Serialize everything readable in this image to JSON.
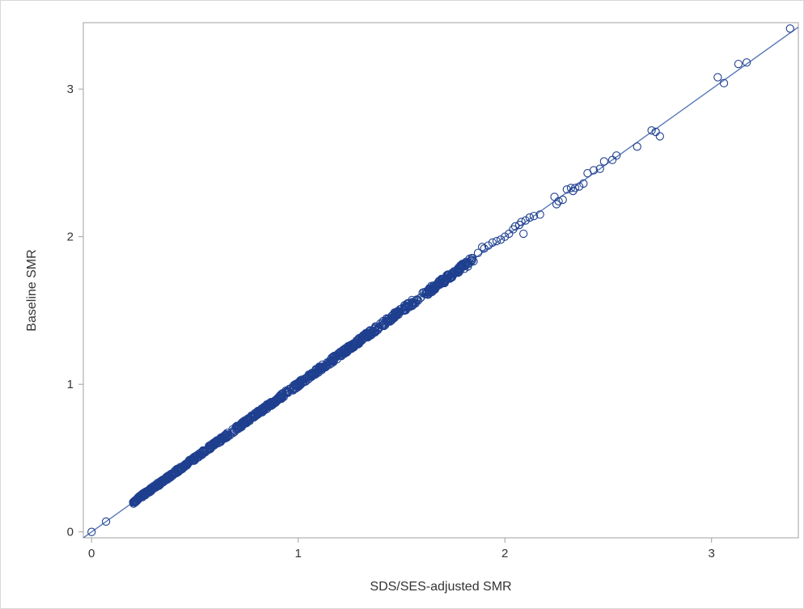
{
  "chart_data": {
    "type": "scatter",
    "xlabel": "SDS/SES-adjusted SMR",
    "ylabel": "Baseline SMR",
    "xlim": [
      -0.04,
      3.42
    ],
    "ylim": [
      -0.04,
      3.45
    ],
    "x_ticks": [
      0,
      1,
      2,
      3
    ],
    "y_ticks": [
      0,
      1,
      2,
      3
    ],
    "x_tick_labels": [
      "0",
      "1",
      "2",
      "3"
    ],
    "y_tick_labels": [
      "0",
      "1",
      "2",
      "3"
    ],
    "grid": false,
    "legend": "none",
    "fit_line": {
      "slope": 1.0,
      "intercept": 0.0
    },
    "point_style": "open-circle",
    "colors": {
      "points": "#1f3f8f",
      "line": "#5a7ab8",
      "frame": "#a0a0a0",
      "text": "#333333"
    },
    "bulk": {
      "x_range": [
        0.2,
        1.85
      ],
      "count": 900,
      "note_free": true
    },
    "points": [
      [
        0.0,
        0.0
      ],
      [
        0.07,
        0.07
      ],
      [
        1.87,
        1.89
      ],
      [
        1.89,
        1.93
      ],
      [
        1.9,
        1.92
      ],
      [
        1.92,
        1.94
      ],
      [
        1.94,
        1.96
      ],
      [
        1.96,
        1.97
      ],
      [
        1.98,
        1.98
      ],
      [
        2.0,
        2.0
      ],
      [
        2.02,
        2.02
      ],
      [
        2.04,
        2.05
      ],
      [
        2.05,
        2.07
      ],
      [
        2.07,
        2.08
      ],
      [
        2.08,
        2.1
      ],
      [
        2.09,
        2.02
      ],
      [
        2.1,
        2.11
      ],
      [
        2.12,
        2.13
      ],
      [
        2.14,
        2.14
      ],
      [
        2.17,
        2.15
      ],
      [
        2.24,
        2.27
      ],
      [
        2.25,
        2.22
      ],
      [
        2.26,
        2.24
      ],
      [
        2.28,
        2.25
      ],
      [
        2.3,
        2.32
      ],
      [
        2.32,
        2.33
      ],
      [
        2.33,
        2.31
      ],
      [
        2.34,
        2.33
      ],
      [
        2.36,
        2.34
      ],
      [
        2.38,
        2.36
      ],
      [
        2.4,
        2.43
      ],
      [
        2.43,
        2.45
      ],
      [
        2.46,
        2.46
      ],
      [
        2.48,
        2.51
      ],
      [
        2.52,
        2.52
      ],
      [
        2.54,
        2.55
      ],
      [
        2.64,
        2.61
      ],
      [
        2.71,
        2.72
      ],
      [
        2.73,
        2.71
      ],
      [
        2.75,
        2.68
      ],
      [
        3.03,
        3.08
      ],
      [
        3.06,
        3.04
      ],
      [
        3.13,
        3.17
      ],
      [
        3.17,
        3.18
      ],
      [
        3.38,
        3.41
      ]
    ]
  }
}
